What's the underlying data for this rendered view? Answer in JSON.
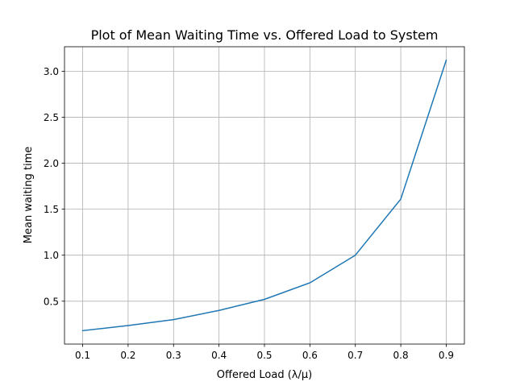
{
  "chart_data": {
    "type": "line",
    "title": "Plot of Mean Waiting Time vs. Offered Load to System",
    "xlabel": "Offered Load (λ/μ)",
    "ylabel": "Mean waiting time",
    "x": [
      0.1,
      0.2,
      0.3,
      0.4,
      0.5,
      0.6,
      0.7,
      0.8,
      0.9
    ],
    "series": [
      {
        "values": [
          0.18,
          0.235,
          0.3,
          0.4,
          0.52,
          0.7,
          1.0,
          1.61,
          3.12
        ],
        "color": "#1f77b4"
      }
    ],
    "xlim": [
      0.06,
      0.94
    ],
    "ylim": [
      0.034,
      3.266
    ],
    "xticks": [
      0.1,
      0.2,
      0.3,
      0.4,
      0.5,
      0.6,
      0.7,
      0.8,
      0.9
    ],
    "xtick_labels": [
      "0.1",
      "0.2",
      "0.3",
      "0.4",
      "0.5",
      "0.6",
      "0.7",
      "0.8",
      "0.9"
    ],
    "yticks": [
      0.5,
      1.0,
      1.5,
      2.0,
      2.5,
      3.0
    ],
    "ytick_labels": [
      "0.5",
      "1.0",
      "1.5",
      "2.0",
      "2.5",
      "3.0"
    ],
    "grid": true,
    "grid_color": "#b0b0b0"
  }
}
